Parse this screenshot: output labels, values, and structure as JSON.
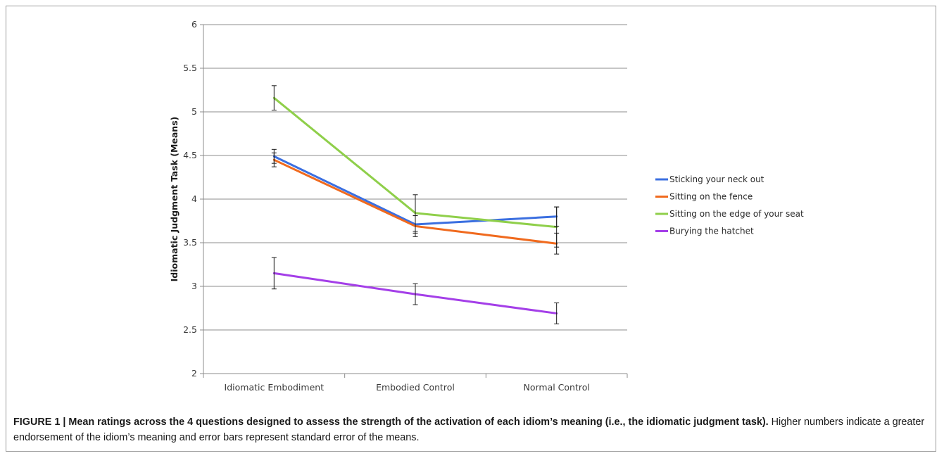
{
  "chart_data": {
    "type": "line",
    "title": "",
    "xlabel": "",
    "ylabel": "Idiomatic Judgment Task (Means)",
    "ylim": [
      2,
      6
    ],
    "y_ticks": [
      "2",
      "2.5",
      "3",
      "3.5",
      "4",
      "4.5",
      "5",
      "5.5",
      "6"
    ],
    "categories": [
      "Idiomatic Embodiment",
      "Embodied Control",
      "Normal Control"
    ],
    "grid": true,
    "legend_position": "right",
    "series": [
      {
        "name": "Sticking your neck out",
        "color": "#3b6fe0",
        "values": [
          4.49,
          3.71,
          3.8
        ],
        "errors": [
          0.08,
          0.1,
          0.11
        ]
      },
      {
        "name": "Sitting on the fence",
        "color": "#f06a1e",
        "values": [
          4.45,
          3.69,
          3.49
        ],
        "errors": [
          0.08,
          0.12,
          0.12
        ]
      },
      {
        "name": "Sitting on the edge of your seat",
        "color": "#8fcf4a",
        "values": [
          5.16,
          3.84,
          3.68
        ],
        "errors": [
          0.14,
          0.21,
          0.23
        ]
      },
      {
        "name": "Burying the hatchet",
        "color": "#a43fe8",
        "values": [
          3.15,
          2.91,
          2.69
        ],
        "errors": [
          0.18,
          0.12,
          0.12
        ]
      }
    ]
  },
  "caption": {
    "lead": "FIGURE 1 | Mean ratings across the 4 questions designed to assess the strength of the activation of each idiom’s meaning (i.e., the idiomatic judgment task).",
    "body": " Higher numbers indicate a greater endorsement of the idiom’s meaning and error bars represent standard error of the means."
  }
}
